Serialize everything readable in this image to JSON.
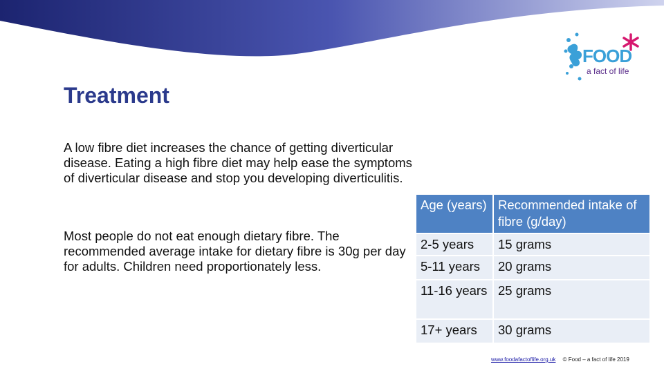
{
  "slide": {
    "title": "Treatment",
    "paragraph_1": "A low fibre diet increases the chance of getting diverticular disease. Eating a high fibre diet may help ease the symptoms of diverticular disease and stop you developing diverticulitis.",
    "paragraph_2": "Most people do not eat enough dietary fibre. The recommended average intake for dietary fibre is 30g per day for adults. Children need proportionately less."
  },
  "logo": {
    "word": "FOOD",
    "tagline": "a fact of life"
  },
  "table": {
    "headers": [
      "Age (years)",
      "Recommended intake of fibre (g/day)"
    ],
    "rows": [
      [
        "2-5 years",
        "15 grams"
      ],
      [
        "5-11 years",
        "20 grams"
      ],
      [
        "11-16 years",
        "25 grams"
      ],
      [
        "17+ years",
        "30 grams"
      ]
    ]
  },
  "footer": {
    "link": "www.foodafactoflife.org.uk",
    "copyright": "© Food – a fact of life 2019"
  },
  "colors": {
    "title": "#2b3a8c",
    "header_fill": "#4e82c4",
    "cell_fill": "#e9eef6",
    "swoosh": "#2c3590",
    "logo_blue": "#3aa0d8",
    "logo_star": "#d6186f",
    "logo_tagline": "#5a2d8a"
  }
}
